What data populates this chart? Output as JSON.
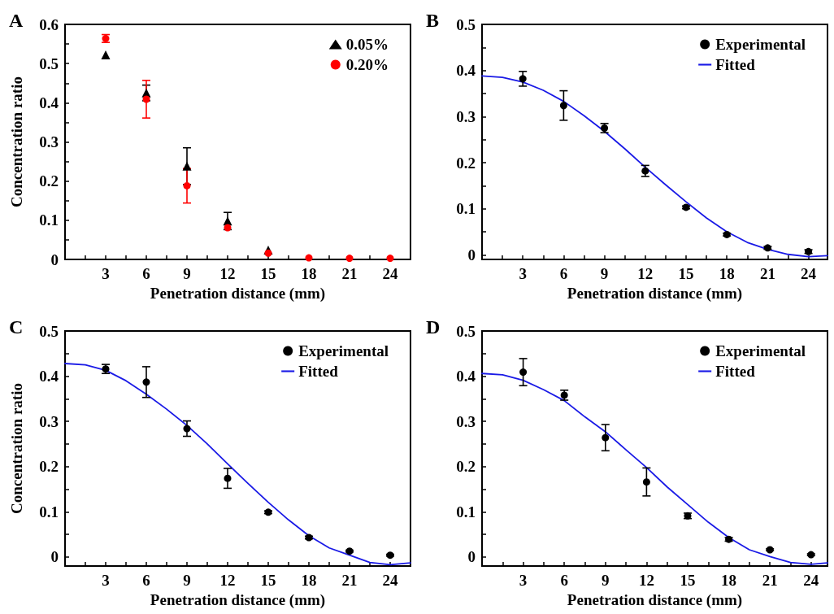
{
  "chart_data": [
    {
      "type": "scatter",
      "title": "A",
      "xlabel": "Penetration distance (mm)",
      "ylabel": "Concentration ratio",
      "x": [
        3,
        6,
        9,
        12,
        15,
        18,
        21,
        24
      ],
      "xlim": [
        0,
        25.5
      ],
      "ylim": [
        0,
        0.6
      ],
      "xticks": [
        {
          "value": 1.5,
          "label": null
        },
        3,
        {
          "value": 4.5,
          "label": null
        },
        6,
        {
          "value": 7.5,
          "label": null
        },
        9,
        {
          "value": 10.5,
          "label": null
        },
        12,
        {
          "value": 13.5,
          "label": null
        },
        15,
        {
          "value": 16.5,
          "label": null
        },
        18,
        {
          "value": 19.5,
          "label": null
        },
        21,
        {
          "value": 22.5,
          "label": null
        },
        24
      ],
      "yticks": [
        0,
        {
          "value": 0.05,
          "label": null
        },
        0.1,
        {
          "value": 0.15,
          "label": null
        },
        0.2,
        {
          "value": 0.25,
          "label": null
        },
        0.3,
        {
          "value": 0.35,
          "label": null
        },
        0.4,
        {
          "value": 0.45,
          "label": null
        },
        0.5,
        {
          "value": 0.55,
          "label": null
        },
        0.6
      ],
      "grid": false,
      "legend": "top right",
      "series": [
        {
          "name": "0.05%",
          "marker": "triangle",
          "color": "#000000",
          "values": [
            0.522,
            0.425,
            0.238,
            0.098,
            0.024,
            null,
            null,
            null
          ],
          "errors": [
            null,
            0.02,
            0.047,
            0.022,
            null,
            null,
            null,
            null
          ]
        },
        {
          "name": "0.20%",
          "marker": "circle",
          "color": "#ff0000",
          "values": [
            0.564,
            0.409,
            0.188,
            0.081,
            0.016,
            0.004,
            0.003,
            0.003
          ],
          "errors": [
            0.01,
            0.048,
            0.044,
            null,
            null,
            null,
            null,
            null
          ]
        }
      ]
    },
    {
      "type": "scatter",
      "title": "B",
      "xlabel": "Penetration distance (mm)",
      "x": [
        3,
        6,
        9,
        12,
        15,
        18,
        21,
        24
      ],
      "xlim": [
        0,
        25.4
      ],
      "ylim": [
        -0.01,
        0.5
      ],
      "xticks": [
        {
          "value": 1.5,
          "label": null
        },
        3,
        {
          "value": 4.5,
          "label": null
        },
        6,
        {
          "value": 7.5,
          "label": null
        },
        9,
        {
          "value": 10.5,
          "label": null
        },
        12,
        {
          "value": 13.5,
          "label": null
        },
        15,
        {
          "value": 16.5,
          "label": null
        },
        18,
        {
          "value": 19.5,
          "label": null
        },
        21,
        {
          "value": 22.5,
          "label": null
        },
        24
      ],
      "yticks": [
        0,
        {
          "value": 0.05,
          "label": null
        },
        0.1,
        {
          "value": 0.15,
          "label": null
        },
        0.2,
        {
          "value": 0.25,
          "label": null
        },
        0.3,
        {
          "value": 0.35,
          "label": null
        },
        0.4,
        {
          "value": 0.45,
          "label": null
        },
        0.5
      ],
      "grid": false,
      "legend": "top right",
      "series": [
        {
          "name": "Experimental",
          "marker": "circle",
          "color": "#000000",
          "values": [
            0.382,
            0.324,
            0.275,
            0.182,
            0.103,
            0.044,
            0.015,
            0.007
          ],
          "errors": [
            0.016,
            0.032,
            0.01,
            0.012,
            0.003,
            0.003,
            0.003,
            0.004
          ]
        },
        {
          "name": "Fitted",
          "type": "line",
          "color": "#1a1ae6",
          "x": [
            0,
            1.5,
            3,
            4.5,
            6,
            7.5,
            9,
            10.5,
            12,
            13.5,
            15,
            16.5,
            18,
            19.5,
            21,
            22.5,
            24,
            25.4
          ],
          "values": [
            0.388,
            0.385,
            0.375,
            0.357,
            0.333,
            0.302,
            0.268,
            0.23,
            0.19,
            0.152,
            0.115,
            0.08,
            0.05,
            0.027,
            0.012,
            0.001,
            -0.004,
            -0.002
          ]
        }
      ]
    },
    {
      "type": "scatter",
      "title": "C",
      "xlabel": "Penetration distance (mm)",
      "ylabel": "Concentration ratio",
      "x": [
        3,
        6,
        9,
        12,
        15,
        18,
        21,
        24
      ],
      "xlim": [
        0,
        25.5
      ],
      "ylim": [
        -0.02,
        0.5
      ],
      "xticks": [
        {
          "value": 1.5,
          "label": null
        },
        3,
        {
          "value": 4.5,
          "label": null
        },
        6,
        {
          "value": 7.5,
          "label": null
        },
        9,
        {
          "value": 10.5,
          "label": null
        },
        12,
        {
          "value": 13.5,
          "label": null
        },
        15,
        {
          "value": 16.5,
          "label": null
        },
        18,
        {
          "value": 19.5,
          "label": null
        },
        21,
        {
          "value": 22.5,
          "label": null
        },
        24
      ],
      "yticks": [
        0,
        {
          "value": 0.05,
          "label": null
        },
        0.1,
        {
          "value": 0.15,
          "label": null
        },
        0.2,
        {
          "value": 0.25,
          "label": null
        },
        0.3,
        {
          "value": 0.35,
          "label": null
        },
        0.4,
        {
          "value": 0.45,
          "label": null
        },
        0.5
      ],
      "grid": false,
      "legend": "top right",
      "series": [
        {
          "name": "Experimental",
          "marker": "circle",
          "color": "#000000",
          "values": [
            0.416,
            0.387,
            0.284,
            0.174,
            0.099,
            0.043,
            0.013,
            0.004
          ],
          "errors": [
            0.01,
            0.034,
            0.017,
            0.022,
            0.003,
            0.003,
            0.002,
            0.002
          ]
        },
        {
          "name": "Fitted",
          "type": "line",
          "color": "#1a1ae6",
          "x": [
            0,
            1.5,
            3,
            4.5,
            6,
            7.5,
            9,
            10.5,
            12,
            13.5,
            15,
            16.5,
            18,
            19.5,
            21,
            22.5,
            24,
            25.5
          ],
          "values": [
            0.428,
            0.425,
            0.413,
            0.39,
            0.36,
            0.327,
            0.291,
            0.25,
            0.206,
            0.163,
            0.121,
            0.082,
            0.047,
            0.02,
            0.004,
            -0.012,
            -0.017,
            -0.013
          ]
        }
      ]
    },
    {
      "type": "scatter",
      "title": "D",
      "xlabel": "Penetration distance (mm)",
      "x": [
        3,
        6,
        9,
        12,
        15,
        18,
        21,
        24
      ],
      "xlim": [
        0,
        25.2
      ],
      "ylim": [
        -0.02,
        0.5
      ],
      "xticks": [
        {
          "value": 1.5,
          "label": null
        },
        3,
        {
          "value": 4.5,
          "label": null
        },
        6,
        {
          "value": 7.5,
          "label": null
        },
        9,
        {
          "value": 10.5,
          "label": null
        },
        12,
        {
          "value": 13.5,
          "label": null
        },
        15,
        {
          "value": 16.5,
          "label": null
        },
        18,
        {
          "value": 19.5,
          "label": null
        },
        21,
        {
          "value": 22.5,
          "label": null
        },
        24
      ],
      "yticks": [
        0,
        {
          "value": 0.05,
          "label": null
        },
        0.1,
        {
          "value": 0.15,
          "label": null
        },
        0.2,
        {
          "value": 0.25,
          "label": null
        },
        0.3,
        {
          "value": 0.35,
          "label": null
        },
        0.4,
        {
          "value": 0.45,
          "label": null
        },
        0.5
      ],
      "grid": false,
      "legend": "top right",
      "series": [
        {
          "name": "Experimental",
          "marker": "circle",
          "color": "#000000",
          "values": [
            0.409,
            0.358,
            0.264,
            0.166,
            0.091,
            0.039,
            0.016,
            0.005
          ],
          "errors": [
            0.03,
            0.011,
            0.029,
            0.031,
            0.006,
            0.004,
            0.002,
            0.002
          ]
        },
        {
          "name": "Fitted",
          "type": "line",
          "color": "#1a1ae6",
          "x": [
            0,
            1.5,
            3,
            4.5,
            6,
            7.5,
            9,
            10.5,
            12,
            13.5,
            15,
            16.5,
            18,
            19.5,
            21,
            22.5,
            24,
            25.2
          ],
          "values": [
            0.406,
            0.403,
            0.391,
            0.37,
            0.346,
            0.31,
            0.277,
            0.237,
            0.198,
            0.155,
            0.116,
            0.077,
            0.043,
            0.016,
            0.001,
            -0.012,
            -0.016,
            -0.013
          ]
        }
      ]
    }
  ]
}
